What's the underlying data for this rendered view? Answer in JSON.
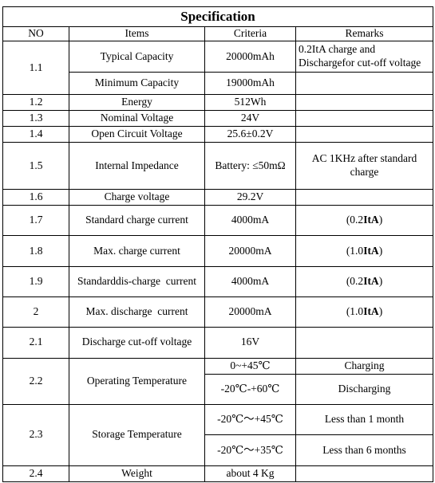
{
  "title": "Specification",
  "headers": {
    "no": "NO",
    "items": "Items",
    "criteria": "Criteria",
    "remarks": "Remarks"
  },
  "rows": {
    "r1_1": {
      "no": "1.1",
      "item_a": "Typical Capacity",
      "criteria_a": "20000mAh",
      "remark_line1": "0.2ItA charge and",
      "remark_line2": "Dischargefor cut-off voltage",
      "item_b": "Minimum Capacity",
      "criteria_b": "19000mAh"
    },
    "r1_2": {
      "no": "1.2",
      "item": "Energy",
      "criteria": "512Wh",
      "remark": ""
    },
    "r1_3": {
      "no": "1.3",
      "item": "Nominal Voltage",
      "criteria": "24V",
      "remark": ""
    },
    "r1_4": {
      "no": "1.4",
      "item": "Open Circuit Voltage",
      "criteria": "25.6±0.2V",
      "remark": ""
    },
    "r1_5": {
      "no": "1.5",
      "item": "Internal Impedance",
      "criteria": "Battery: ≤50mΩ",
      "remark_line1": "AC 1KHz after standard",
      "remark_line2": "charge"
    },
    "r1_6": {
      "no": "1.6",
      "item": "Charge voltage",
      "criteria": "29.2V",
      "remark": ""
    },
    "r1_7": {
      "no": "1.7",
      "item": "Standard charge current",
      "criteria": "4000mA",
      "remark_pre": "(0.2",
      "remark_bold": "ItA",
      "remark_post": ")"
    },
    "r1_8": {
      "no": "1.8",
      "item": "Max. charge current",
      "criteria": "20000mA",
      "remark_pre": "(1.0",
      "remark_bold": "ItA",
      "remark_post": ")"
    },
    "r1_9": {
      "no": "1.9",
      "item": "Standarddis-charge  current",
      "criteria": "4000mA",
      "remark_pre": "(0.2",
      "remark_bold": "ItA",
      "remark_post": ")"
    },
    "r2": {
      "no": "2",
      "item": "Max. discharge  current",
      "criteria": "20000mA",
      "remark_pre": "(1.0",
      "remark_bold": "ItA",
      "remark_post": ")"
    },
    "r2_1": {
      "no": "2.1",
      "item": "Discharge cut-off voltage",
      "criteria": "16V",
      "remark": ""
    },
    "r2_2": {
      "no": "2.2",
      "item": "Operating Temperature",
      "criteria_a": "0~+45℃",
      "remark_a": "Charging",
      "criteria_b": "-20℃-+60℃",
      "remark_b": "Discharging"
    },
    "r2_3": {
      "no": "2.3",
      "item": "Storage Temperature",
      "criteria_a": "-20℃～+45℃",
      "remark_a": "Less than 1 month",
      "criteria_b": "-20℃～+35℃",
      "remark_b": "Less than 6 months"
    },
    "r2_4": {
      "no": "2.4",
      "item": "Weight",
      "criteria": "about 4 Kg",
      "remark": ""
    }
  }
}
